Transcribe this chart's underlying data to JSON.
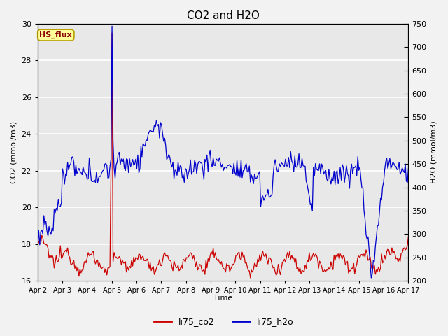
{
  "title": "CO2 and H2O",
  "xlabel": "Time",
  "ylabel_left": "CO2 (mmol/m3)",
  "ylabel_right": "H2O (mmol/m3)",
  "annotation_text": "HS_flux",
  "annotation_color": "#8B0000",
  "annotation_bg": "#FFFF99",
  "annotation_border": "#B8A000",
  "ylim_left": [
    16,
    30
  ],
  "ylim_right": [
    200,
    750
  ],
  "yticks_left": [
    16,
    18,
    20,
    22,
    24,
    26,
    28,
    30
  ],
  "yticks_right": [
    200,
    250,
    300,
    350,
    400,
    450,
    500,
    550,
    600,
    650,
    700,
    750
  ],
  "xtick_labels": [
    "Apr 2",
    "Apr 3",
    "Apr 4",
    "Apr 5",
    "Apr 6",
    "Apr 7",
    "Apr 8",
    "Apr 9",
    "Apr 10",
    "Apr 11",
    "Apr 12",
    "Apr 13",
    "Apr 14",
    "Apr 15",
    "Apr 16",
    "Apr 17"
  ],
  "co2_color": "#CC0000",
  "h2o_color": "#0000CC",
  "plot_bg_color": "#E8E8E8",
  "fig_bg_color": "#F2F2F2",
  "grid_color": "#FFFFFF",
  "legend_co2": "li75_co2",
  "legend_h2o": "li75_h2o",
  "figsize": [
    6.4,
    4.8
  ],
  "dpi": 100
}
